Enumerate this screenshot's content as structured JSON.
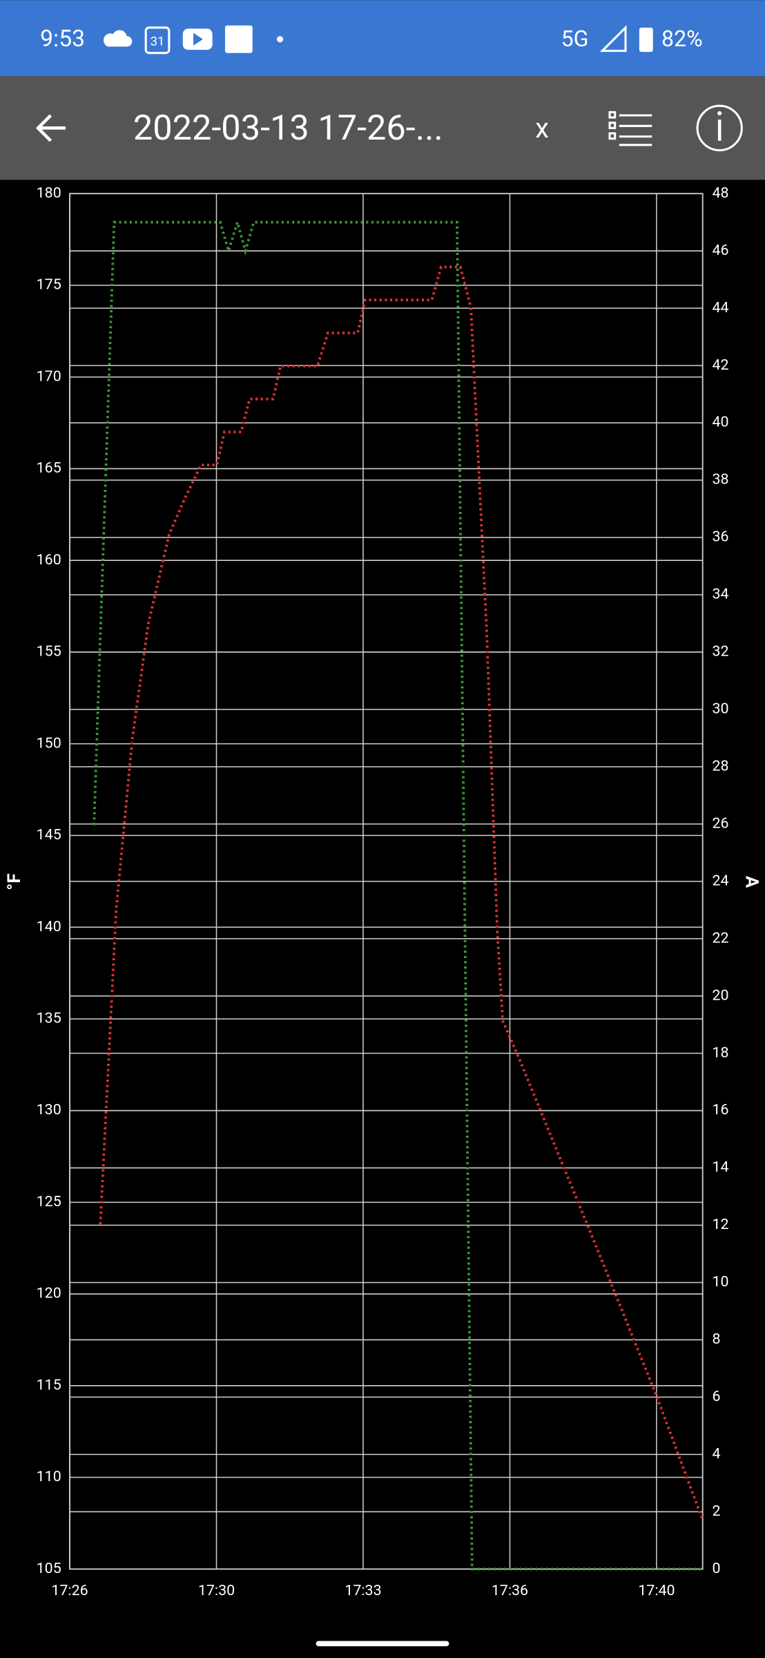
{
  "status_bar": {
    "time": "9:53",
    "calendar_day": "31",
    "network": "5G",
    "battery": "82%"
  },
  "toolbar": {
    "title": "2022-03-13 17-26-...",
    "close": "x"
  },
  "chart_data": {
    "type": "line",
    "ylabel": "°F",
    "y2label": "A",
    "grid": true,
    "xlim": [
      1046,
      1061.1
    ],
    "xticks": [
      {
        "value": 1046,
        "label": "17:26"
      },
      {
        "value": 1049.5,
        "label": "17:30"
      },
      {
        "value": 1053,
        "label": "17:33"
      },
      {
        "value": 1056.5,
        "label": "17:36"
      },
      {
        "value": 1060,
        "label": "17:40"
      }
    ],
    "ylim": [
      105,
      180
    ],
    "yticks": [
      105,
      110,
      115,
      120,
      125,
      130,
      135,
      140,
      145,
      150,
      155,
      160,
      165,
      170,
      175,
      180
    ],
    "y2lim": [
      0,
      48
    ],
    "y2ticks": [
      0,
      2,
      4,
      6,
      8,
      10,
      12,
      14,
      16,
      18,
      20,
      22,
      24,
      26,
      28,
      30,
      32,
      34,
      36,
      38,
      40,
      42,
      44,
      46,
      48
    ],
    "series": [
      {
        "color": "#e03434",
        "axis": "y",
        "x": [
          1046.73,
          1047.11,
          1047.49,
          1047.87,
          1048.37,
          1048.75,
          1049.13,
          1049.51,
          1049.69,
          1050.09,
          1050.29,
          1050.85,
          1051.03,
          1051.91,
          1052.16,
          1052.87,
          1053.05,
          1054.64,
          1054.86,
          1055.32,
          1055.57,
          1055.95,
          1056.2,
          1056.33,
          1056.71,
          1058.47,
          1059.99,
          1061.08
        ],
        "values": [
          123.8,
          141,
          150.2,
          156.5,
          161.4,
          163.4,
          165.2,
          165.2,
          167,
          167,
          168.8,
          168.8,
          170.6,
          170.6,
          172.4,
          172.4,
          174.2,
          174.2,
          176,
          176,
          173.8,
          156,
          139.8,
          134.9,
          132.9,
          123.1,
          114.5,
          107.8
        ]
      },
      {
        "color": "#3c9a3c",
        "axis": "y2",
        "x": [
          1046.56,
          1046.58,
          1047.06,
          1049.59,
          1049.79,
          1050,
          1050.19,
          1050.39,
          1055.24,
          1055.6,
          1061.1
        ],
        "values": [
          26,
          26,
          47,
          47,
          46,
          47,
          46,
          47,
          47,
          0,
          0
        ]
      }
    ]
  }
}
